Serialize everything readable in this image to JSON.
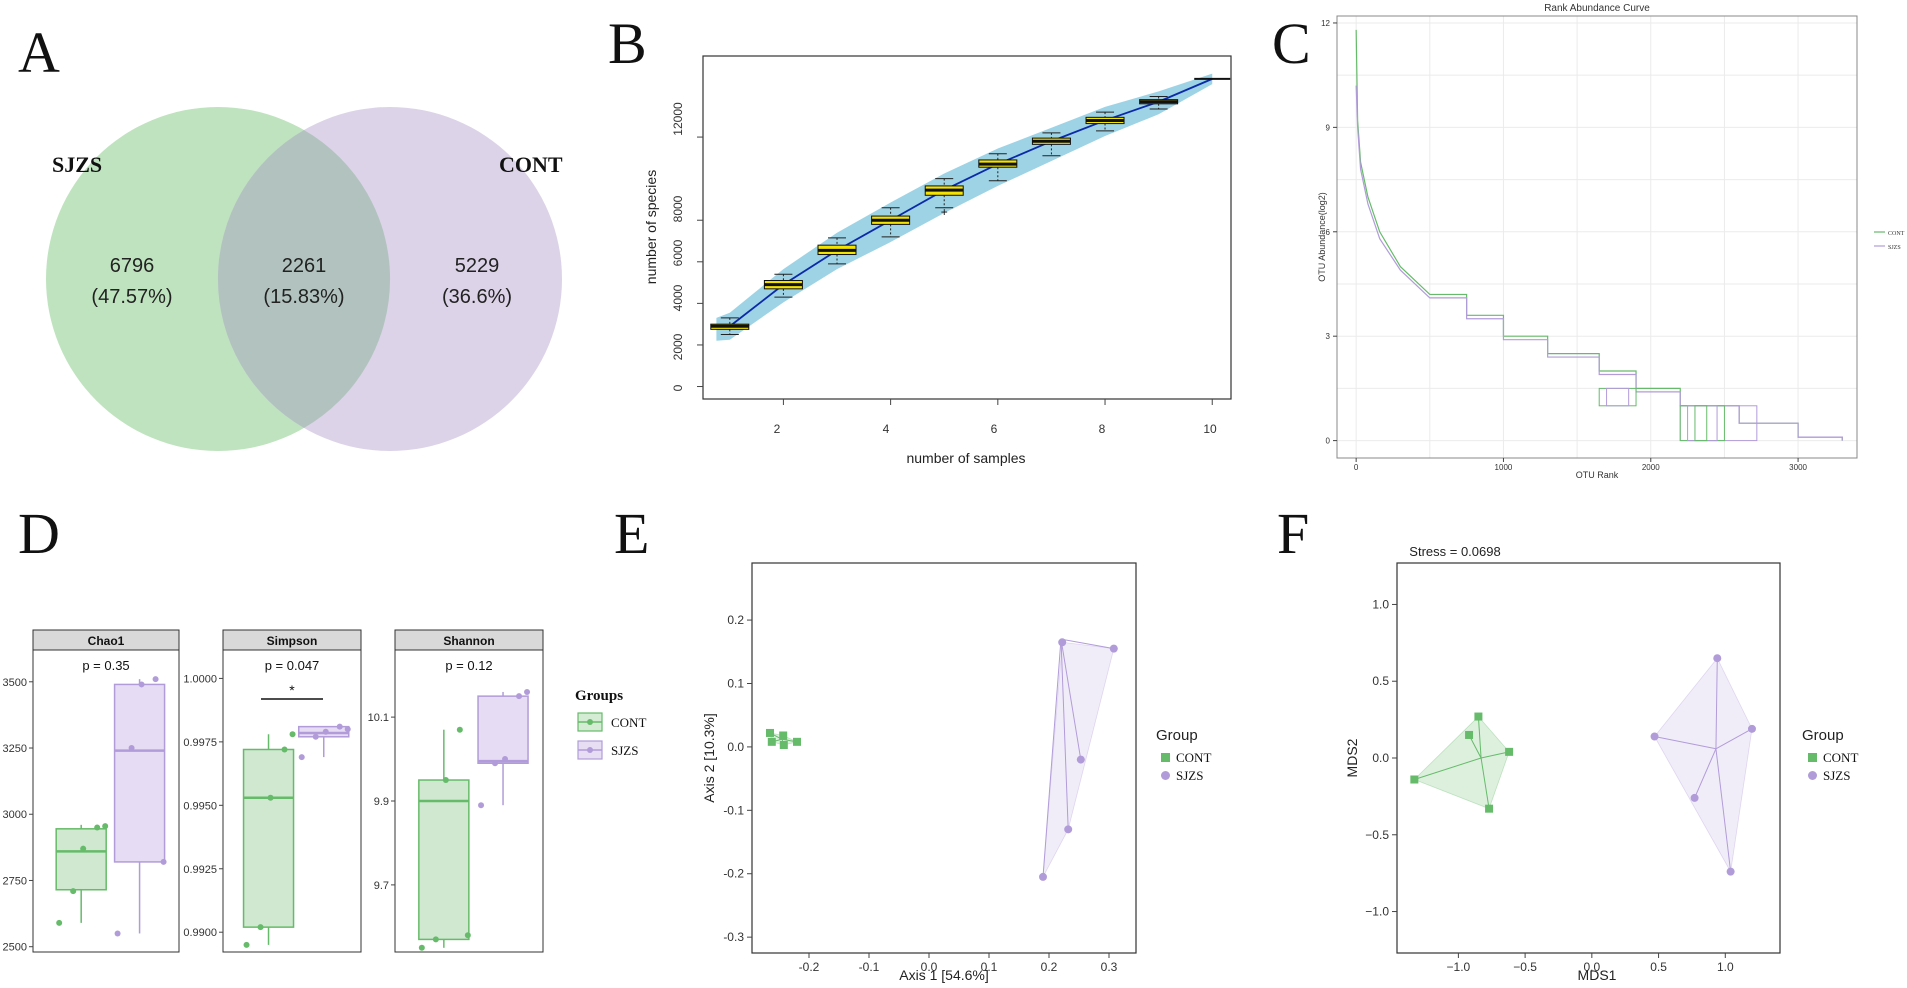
{
  "colors": {
    "cont": "#66bb6a",
    "sjzs": "#b19cd9",
    "venn_green": "#bfe3bf",
    "venn_purple": "#dcd3e8",
    "venn_overlap": "#b2c3bf",
    "rare_yellow": "#f4e300",
    "rare_band": "#8ccbe0",
    "rare_line": "#0b2aa8"
  },
  "panels": {
    "a": {
      "label": "A",
      "chart_data": {
        "type": "venn",
        "sets": [
          "SJZS",
          "CONT"
        ],
        "regions": [
          {
            "name": "SJZS only",
            "count": "6796",
            "percent": "(47.57%)"
          },
          {
            "name": "shared",
            "count": "2261",
            "percent": "(15.83%)"
          },
          {
            "name": "CONT only",
            "count": "5229",
            "percent": "(36.6%)"
          }
        ]
      }
    },
    "b": {
      "label": "B",
      "chart_data": {
        "type": "boxplot",
        "xlabel": "number of samples",
        "ylabel": "number of species",
        "xlim": [
          0.5,
          10.35
        ],
        "ylim": [
          -600,
          15900
        ],
        "xticks": [
          "2",
          "4",
          "6",
          "8",
          "10"
        ],
        "yticks": [
          "0",
          "2000",
          "4000",
          "6000",
          "8000",
          "12000"
        ],
        "boxes": [
          {
            "x": 1,
            "min": 2500,
            "q1": 2750,
            "median": 2900,
            "q3": 3000,
            "max": 3300
          },
          {
            "x": 2,
            "min": 4300,
            "q1": 4700,
            "median": 4900,
            "q3": 5100,
            "max": 5400
          },
          {
            "x": 3,
            "min": 5900,
            "q1": 6350,
            "median": 6550,
            "q3": 6800,
            "max": 7150
          },
          {
            "x": 4,
            "min": 7200,
            "q1": 7800,
            "median": 8000,
            "q3": 8200,
            "max": 8600
          },
          {
            "x": 5,
            "min": 8600,
            "q1": 9200,
            "median": 9450,
            "q3": 9650,
            "max": 10000,
            "outlier": 8400
          },
          {
            "x": 6,
            "min": 9900,
            "q1": 10550,
            "median": 10700,
            "q3": 10900,
            "max": 11200
          },
          {
            "x": 7,
            "min": 11100,
            "q1": 11650,
            "median": 11800,
            "q3": 11950,
            "max": 12200
          },
          {
            "x": 8,
            "min": 12300,
            "q1": 12650,
            "median": 12800,
            "q3": 12950,
            "max": 13200
          },
          {
            "x": 9,
            "min": 13350,
            "q1": 13600,
            "median": 13700,
            "q3": 13800,
            "max": 13950
          },
          {
            "x": 10,
            "min": 14800,
            "q1": 14800,
            "median": 14800,
            "q3": 14800,
            "max": 14800
          }
        ]
      }
    },
    "c": {
      "label": "C",
      "chart_data": {
        "type": "line",
        "title": "Rank Abundance Curve",
        "xlabel": "OTU Rank",
        "ylabel": "OTU Abundance(log2)",
        "xlim": [
          -130,
          3400
        ],
        "ylim": [
          -0.5,
          12.2
        ],
        "xticks": [
          "0",
          "1000",
          "2000",
          "3000"
        ],
        "yticks": [
          "0",
          "3",
          "6",
          "9",
          "12"
        ],
        "series": [
          {
            "name": "CONT",
            "points": [
              [
                0,
                11.8
              ],
              [
                10,
                9.2
              ],
              [
                30,
                8.0
              ],
              [
                80,
                7.0
              ],
              [
                160,
                6.0
              ],
              [
                300,
                5.0
              ],
              [
                500,
                4.2
              ],
              [
                750,
                3.6
              ],
              [
                1000,
                3.0
              ],
              [
                1300,
                2.5
              ],
              [
                1650,
                2.0
              ],
              [
                1900,
                1.5
              ],
              [
                2200,
                1.0
              ],
              [
                2600,
                0.5
              ],
              [
                3000,
                0.1
              ],
              [
                3300,
                0
              ]
            ]
          },
          {
            "name": "SJZS",
            "points": [
              [
                0,
                10.2
              ],
              [
                10,
                9.0
              ],
              [
                30,
                7.8
              ],
              [
                80,
                6.8
              ],
              [
                160,
                5.8
              ],
              [
                300,
                4.9
              ],
              [
                500,
                4.1
              ],
              [
                750,
                3.5
              ],
              [
                1000,
                2.9
              ],
              [
                1300,
                2.4
              ],
              [
                1650,
                1.9
              ],
              [
                1900,
                1.4
              ],
              [
                2200,
                1.0
              ],
              [
                2600,
                0.5
              ],
              [
                3000,
                0.1
              ],
              [
                3300,
                0
              ]
            ]
          }
        ]
      }
    },
    "d": {
      "label": "D",
      "legend_title": "Groups",
      "legend_items": [
        "CONT",
        "SJZS"
      ],
      "facets": [
        {
          "title": "Chao1",
          "pvalue": "p = 0.35",
          "sig": "",
          "ylim": [
            2480,
            3620
          ],
          "yticks": [
            {
              "v": 2500,
              "t": "2500"
            },
            {
              "v": 2750,
              "t": "2750"
            },
            {
              "v": 3000,
              "t": "3000"
            },
            {
              "v": 3250,
              "t": "3250"
            },
            {
              "v": 3500,
              "t": "3500"
            }
          ],
          "cont": {
            "min": 2590,
            "q1": 2715,
            "median": 2860,
            "q3": 2945,
            "max": 2960,
            "points": [
              2590,
              2710,
              2870,
              2950,
              2955
            ]
          },
          "sjzs": {
            "min": 2550,
            "q1": 2820,
            "median": 3240,
            "q3": 3490,
            "max": 3510,
            "points": [
              2550,
              3250,
              3490,
              3510,
              2820
            ]
          }
        },
        {
          "title": "Simpson",
          "pvalue": "p = 0.047",
          "sig": "*",
          "ylim": [
            0.98922,
            1.00112
          ],
          "yticks": [
            {
              "v": 0.99,
              "t": "0.9900"
            },
            {
              "v": 0.9925,
              "t": "0.9925"
            },
            {
              "v": 0.995,
              "t": "0.9950"
            },
            {
              "v": 0.9975,
              "t": "0.9975"
            },
            {
              "v": 1.0,
              "t": "1.0000"
            }
          ],
          "cont": {
            "min": 0.9895,
            "q1": 0.9902,
            "median": 0.9953,
            "q3": 0.9972,
            "max": 0.9978,
            "points": [
              0.9895,
              0.9902,
              0.9953,
              0.9972,
              0.9978
            ]
          },
          "sjzs": {
            "min": 0.9969,
            "q1": 0.9977,
            "median": 0.99785,
            "q3": 0.9981,
            "max": 0.9981,
            "points": [
              0.9969,
              0.9977,
              0.9979,
              0.9981,
              0.998
            ]
          }
        },
        {
          "title": "Shannon",
          "pvalue": "p = 0.12",
          "sig": "",
          "ylim": [
            9.54,
            10.26
          ],
          "yticks": [
            {
              "v": 9.7,
              "t": "9.7"
            },
            {
              "v": 9.9,
              "t": "9.9"
            },
            {
              "v": 10.1,
              "t": "10.1"
            }
          ],
          "cont": {
            "min": 9.55,
            "q1": 9.57,
            "median": 9.9,
            "q3": 9.95,
            "max": 10.07,
            "points": [
              9.55,
              9.57,
              9.95,
              10.07,
              9.58
            ]
          },
          "sjzs": {
            "min": 9.89,
            "q1": 9.99,
            "median": 9.995,
            "q3": 10.15,
            "max": 10.16,
            "points": [
              9.89,
              9.99,
              10.0,
              10.15,
              10.16
            ]
          }
        }
      ]
    },
    "e": {
      "label": "E",
      "chart_data": {
        "type": "scatter",
        "xlabel": "Axis 1 [54.6%]",
        "ylabel": "Axis 2 [10.3%]",
        "xlim": [
          -0.295,
          0.345
        ],
        "ylim": [
          -0.325,
          0.29
        ],
        "xticks": [
          {
            "v": -0.2,
            "t": "-0.2"
          },
          {
            "v": -0.1,
            "t": "-0.1"
          },
          {
            "v": 0.0,
            "t": "0.0"
          },
          {
            "v": 0.1,
            "t": "0.1"
          },
          {
            "v": 0.2,
            "t": "0.2"
          },
          {
            "v": 0.3,
            "t": "0.3"
          }
        ],
        "yticks": [
          {
            "v": -0.3,
            "t": "-0.3"
          },
          {
            "v": -0.2,
            "t": "-0.2"
          },
          {
            "v": -0.1,
            "t": "-0.1"
          },
          {
            "v": 0.0,
            "t": "0.0"
          },
          {
            "v": 0.1,
            "t": "0.1"
          },
          {
            "v": 0.2,
            "t": "0.2"
          }
        ],
        "legend_title": "Group",
        "series": [
          {
            "name": "CONT",
            "centroid": [
              -0.245,
              0.012
            ],
            "points": [
              [
                -0.265,
                0.022
              ],
              [
                -0.262,
                0.008
              ],
              [
                -0.243,
                0.018
              ],
              [
                -0.242,
                0.003
              ],
              [
                -0.22,
                0.008
              ]
            ]
          },
          {
            "name": "SJZS",
            "centroid": [
              0.22,
              0.17
            ],
            "points": [
              [
                0.222,
                0.165
              ],
              [
                0.308,
                0.155
              ],
              [
                0.253,
                -0.02
              ],
              [
                0.232,
                -0.13
              ],
              [
                0.19,
                -0.205
              ]
            ]
          }
        ]
      }
    },
    "f": {
      "label": "F",
      "chart_data": {
        "type": "scatter",
        "title": "Stress = 0.0698",
        "xlabel": "MDS1",
        "ylabel": "MDS2",
        "xlim": [
          -1.46,
          1.41
        ],
        "ylim": [
          -1.27,
          1.27
        ],
        "xticks": [
          {
            "v": -1.0,
            "t": "−1.0"
          },
          {
            "v": -0.5,
            "t": "−0.5"
          },
          {
            "v": 0.0,
            "t": "0.0"
          },
          {
            "v": 0.5,
            "t": "0.5"
          },
          {
            "v": 1.0,
            "t": "1.0"
          }
        ],
        "yticks": [
          {
            "v": -1.0,
            "t": "−1.0"
          },
          {
            "v": -0.5,
            "t": "−0.5"
          },
          {
            "v": 0.0,
            "t": "0.0"
          },
          {
            "v": 0.5,
            "t": "0.5"
          },
          {
            "v": 1.0,
            "t": "1.0"
          }
        ],
        "legend_title": "Group",
        "series": [
          {
            "name": "CONT",
            "centroid": [
              -0.83,
              0.0
            ],
            "points": [
              [
                -1.33,
                -0.14
              ],
              [
                -0.92,
                0.15
              ],
              [
                -0.85,
                0.27
              ],
              [
                -0.62,
                0.04
              ],
              [
                -0.77,
                -0.33
              ]
            ]
          },
          {
            "name": "SJZS",
            "centroid": [
              0.93,
              0.06
            ],
            "points": [
              [
                0.47,
                0.14
              ],
              [
                0.94,
                0.65
              ],
              [
                1.2,
                0.19
              ],
              [
                0.77,
                -0.26
              ],
              [
                1.04,
                -0.74
              ]
            ]
          }
        ]
      }
    }
  }
}
